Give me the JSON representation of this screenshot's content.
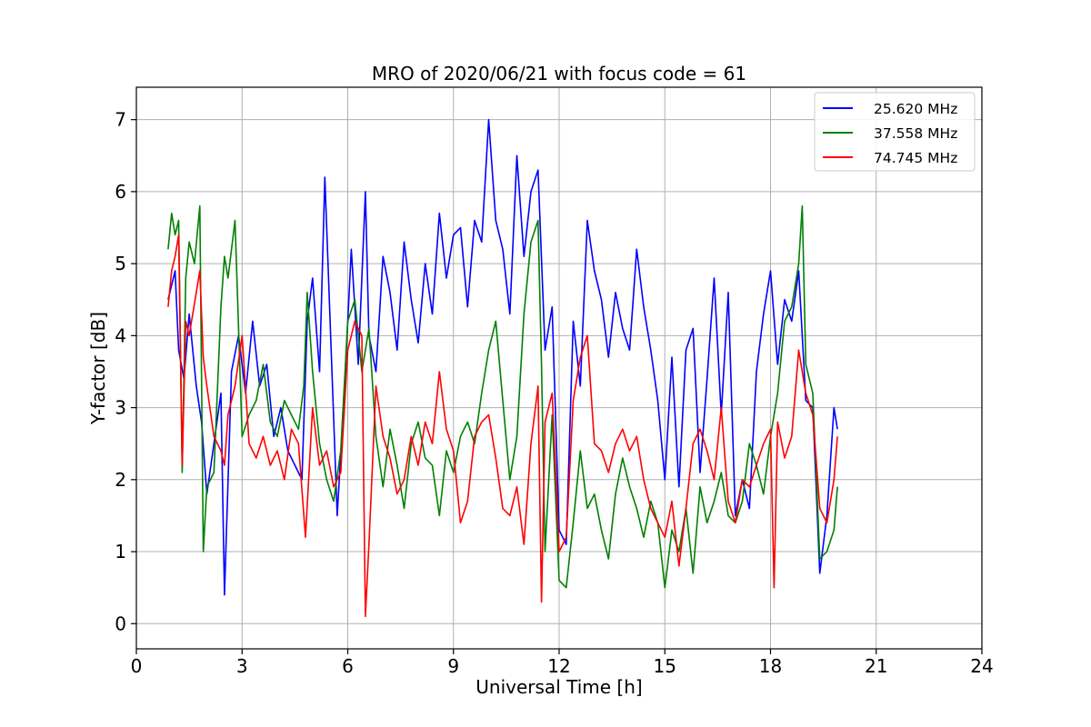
{
  "chart_data": {
    "type": "line",
    "title": "MRO of 2020/06/21 with focus code = 61",
    "xlabel": "Universal Time [h]",
    "ylabel": "Y-factor [dB]",
    "xlim": [
      0,
      24
    ],
    "ylim": [
      -0.35,
      7.45
    ],
    "x_ticks": [
      0,
      3,
      6,
      9,
      12,
      15,
      18,
      21,
      24
    ],
    "y_ticks": [
      0,
      1,
      2,
      3,
      4,
      5,
      6,
      7
    ],
    "grid": true,
    "legend_position": "top-right",
    "series": [
      {
        "name": "25.620 MHz",
        "color": "#0000ff",
        "x": [
          0.9,
          1.1,
          1.2,
          1.35,
          1.5,
          1.7,
          1.85,
          2.0,
          2.2,
          2.4,
          2.5,
          2.7,
          2.9,
          3.1,
          3.3,
          3.5,
          3.7,
          3.9,
          4.1,
          4.3,
          4.5,
          4.7,
          4.85,
          5.0,
          5.2,
          5.35,
          5.5,
          5.7,
          5.9,
          6.1,
          6.3,
          6.5,
          6.6,
          6.8,
          7.0,
          7.2,
          7.4,
          7.6,
          7.8,
          8.0,
          8.2,
          8.4,
          8.6,
          8.8,
          9.0,
          9.2,
          9.4,
          9.6,
          9.8,
          10.0,
          10.2,
          10.4,
          10.6,
          10.8,
          11.0,
          11.2,
          11.4,
          11.6,
          11.8,
          12.0,
          12.2,
          12.4,
          12.6,
          12.8,
          13.0,
          13.2,
          13.4,
          13.6,
          13.8,
          14.0,
          14.2,
          14.4,
          14.6,
          14.8,
          15.0,
          15.2,
          15.4,
          15.6,
          15.8,
          16.0,
          16.2,
          16.4,
          16.6,
          16.8,
          17.0,
          17.2,
          17.4,
          17.6,
          17.8,
          18.0,
          18.2,
          18.4,
          18.6,
          18.8,
          19.0,
          19.2,
          19.4,
          19.6,
          19.8,
          19.9
        ],
        "y": [
          4.5,
          4.9,
          3.8,
          3.4,
          4.3,
          3.3,
          2.8,
          1.8,
          2.5,
          3.2,
          0.4,
          3.5,
          4.0,
          3.2,
          4.2,
          3.3,
          3.6,
          2.6,
          3.0,
          2.4,
          2.2,
          2.0,
          4.2,
          4.8,
          3.5,
          6.2,
          4.2,
          1.5,
          3.2,
          5.2,
          3.6,
          6.0,
          4.0,
          3.5,
          5.1,
          4.6,
          3.8,
          5.3,
          4.5,
          3.9,
          5.0,
          4.3,
          5.7,
          4.8,
          5.4,
          5.5,
          4.4,
          5.6,
          5.3,
          7.0,
          5.6,
          5.2,
          4.3,
          6.5,
          5.1,
          6.0,
          6.3,
          3.8,
          4.4,
          1.3,
          1.1,
          4.2,
          3.3,
          5.6,
          4.9,
          4.5,
          3.7,
          4.6,
          4.1,
          3.8,
          5.2,
          4.4,
          3.8,
          3.1,
          2.0,
          3.7,
          1.9,
          3.8,
          4.1,
          2.1,
          3.4,
          4.8,
          2.9,
          4.6,
          1.5,
          2.0,
          1.6,
          3.5,
          4.3,
          4.9,
          3.6,
          4.5,
          4.2,
          4.9,
          3.1,
          3.0,
          0.7,
          1.5,
          3.0,
          2.7
        ]
      },
      {
        "name": "37.558 MHz",
        "color": "#008000",
        "x": [
          0.9,
          1.0,
          1.1,
          1.2,
          1.3,
          1.4,
          1.5,
          1.65,
          1.8,
          1.9,
          2.0,
          2.2,
          2.4,
          2.5,
          2.6,
          2.8,
          3.0,
          3.2,
          3.4,
          3.6,
          3.8,
          4.0,
          4.2,
          4.4,
          4.6,
          4.75,
          4.85,
          5.0,
          5.2,
          5.4,
          5.6,
          5.8,
          6.0,
          6.2,
          6.4,
          6.6,
          6.8,
          7.0,
          7.2,
          7.4,
          7.6,
          7.8,
          8.0,
          8.2,
          8.4,
          8.6,
          8.8,
          9.0,
          9.2,
          9.4,
          9.6,
          9.8,
          10.0,
          10.2,
          10.4,
          10.6,
          10.8,
          11.0,
          11.2,
          11.4,
          11.5,
          11.6,
          11.8,
          12.0,
          12.2,
          12.4,
          12.6,
          12.8,
          13.0,
          13.2,
          13.4,
          13.6,
          13.8,
          14.0,
          14.2,
          14.4,
          14.6,
          14.8,
          15.0,
          15.2,
          15.4,
          15.6,
          15.8,
          16.0,
          16.2,
          16.4,
          16.6,
          16.8,
          17.0,
          17.2,
          17.4,
          17.6,
          17.8,
          18.0,
          18.2,
          18.4,
          18.6,
          18.8,
          18.9,
          19.0,
          19.2,
          19.4,
          19.6,
          19.8,
          19.9
        ],
        "y": [
          5.2,
          5.7,
          5.4,
          5.6,
          2.1,
          4.8,
          5.3,
          5.0,
          5.8,
          1.0,
          1.9,
          2.1,
          4.4,
          5.1,
          4.8,
          5.6,
          2.6,
          2.9,
          3.1,
          3.6,
          2.8,
          2.6,
          3.1,
          2.9,
          2.7,
          3.3,
          4.6,
          3.5,
          2.5,
          2.0,
          1.7,
          2.4,
          4.2,
          4.5,
          3.5,
          4.1,
          2.6,
          1.9,
          2.7,
          2.2,
          1.6,
          2.5,
          2.8,
          2.3,
          2.2,
          1.5,
          2.4,
          2.1,
          2.6,
          2.8,
          2.5,
          3.2,
          3.8,
          4.2,
          3.1,
          2.0,
          2.6,
          4.3,
          5.3,
          5.6,
          3.6,
          1.0,
          2.9,
          0.6,
          0.5,
          1.4,
          2.4,
          1.6,
          1.8,
          1.3,
          0.9,
          1.8,
          2.3,
          1.9,
          1.6,
          1.2,
          1.7,
          1.4,
          0.5,
          1.3,
          1.0,
          1.6,
          0.7,
          1.9,
          1.4,
          1.7,
          2.1,
          1.5,
          1.4,
          1.7,
          2.5,
          2.2,
          1.8,
          2.6,
          3.2,
          4.2,
          4.4,
          5.0,
          5.8,
          3.6,
          3.2,
          0.9,
          1.0,
          1.3,
          1.9
        ]
      },
      {
        "name": "74.745 MHz",
        "color": "#ff0000",
        "x": [
          0.9,
          1.0,
          1.1,
          1.2,
          1.3,
          1.4,
          1.5,
          1.7,
          1.8,
          1.9,
          2.0,
          2.2,
          2.4,
          2.5,
          2.6,
          2.8,
          3.0,
          3.2,
          3.4,
          3.6,
          3.8,
          4.0,
          4.2,
          4.4,
          4.6,
          4.8,
          5.0,
          5.2,
          5.4,
          5.6,
          5.8,
          6.0,
          6.2,
          6.4,
          6.5,
          6.6,
          6.8,
          7.0,
          7.2,
          7.4,
          7.6,
          7.8,
          8.0,
          8.2,
          8.4,
          8.6,
          8.8,
          9.0,
          9.2,
          9.4,
          9.6,
          9.8,
          10.0,
          10.2,
          10.4,
          10.6,
          10.8,
          11.0,
          11.2,
          11.4,
          11.5,
          11.6,
          11.8,
          12.0,
          12.2,
          12.4,
          12.6,
          12.8,
          13.0,
          13.2,
          13.4,
          13.6,
          13.8,
          14.0,
          14.2,
          14.4,
          14.6,
          14.8,
          15.0,
          15.2,
          15.4,
          15.6,
          15.8,
          16.0,
          16.2,
          16.4,
          16.6,
          16.8,
          17.0,
          17.2,
          17.4,
          17.6,
          17.8,
          18.0,
          18.1,
          18.2,
          18.4,
          18.6,
          18.8,
          19.0,
          19.2,
          19.4,
          19.6,
          19.8,
          19.9
        ],
        "y": [
          4.4,
          4.9,
          5.1,
          5.4,
          2.2,
          4.2,
          4.0,
          4.6,
          4.9,
          3.7,
          3.3,
          2.6,
          2.4,
          2.2,
          2.9,
          3.3,
          4.0,
          2.5,
          2.3,
          2.6,
          2.2,
          2.4,
          2.0,
          2.7,
          2.5,
          1.2,
          3.0,
          2.2,
          2.4,
          1.9,
          2.1,
          3.8,
          4.2,
          4.0,
          0.1,
          1.1,
          3.3,
          2.6,
          2.3,
          1.8,
          2.0,
          2.6,
          2.2,
          2.8,
          2.5,
          3.5,
          2.7,
          2.4,
          1.4,
          1.7,
          2.6,
          2.8,
          2.9,
          2.3,
          1.6,
          1.5,
          1.9,
          1.1,
          2.5,
          3.3,
          0.3,
          2.8,
          3.2,
          1.0,
          1.2,
          3.1,
          3.7,
          4.0,
          2.5,
          2.4,
          2.1,
          2.5,
          2.7,
          2.4,
          2.6,
          2.0,
          1.6,
          1.4,
          1.2,
          1.7,
          0.8,
          1.6,
          2.5,
          2.7,
          2.4,
          2.0,
          3.0,
          1.7,
          1.4,
          2.0,
          1.9,
          2.2,
          2.5,
          2.7,
          0.5,
          2.8,
          2.3,
          2.6,
          3.8,
          3.2,
          2.9,
          1.6,
          1.4,
          2.0,
          2.6
        ]
      }
    ]
  }
}
